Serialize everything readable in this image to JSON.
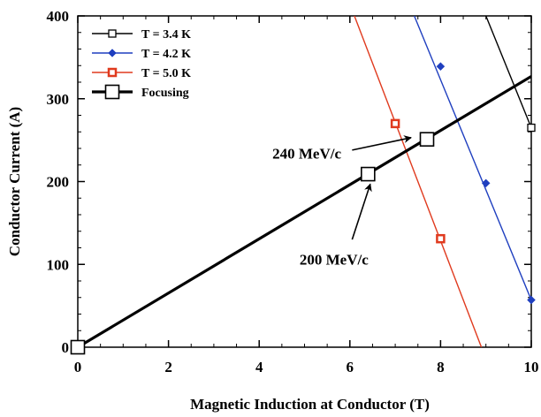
{
  "chart_data": {
    "type": "line",
    "xlabel": "Magnetic Induction at Conductor (T)",
    "ylabel": "Conductor Current (A)",
    "xlim": [
      0,
      10
    ],
    "ylim": [
      0,
      400
    ],
    "x_ticks": [
      0,
      2,
      4,
      6,
      8,
      10
    ],
    "y_ticks": [
      0,
      100,
      200,
      300,
      400
    ],
    "grid": false,
    "legend_position": "top-left",
    "series": [
      {
        "name": "T = 3.4 K",
        "color": "#000000",
        "marker": "hollow-square",
        "line": [
          [
            9.0,
            400
          ],
          [
            10.0,
            265
          ]
        ],
        "points": [
          [
            10.0,
            265
          ]
        ]
      },
      {
        "name": "T = 4.2 K",
        "color": "#1f3fbf",
        "marker": "diamond",
        "line": [
          [
            7.42,
            400
          ],
          [
            10.0,
            57
          ]
        ],
        "points": [
          [
            8.0,
            339
          ],
          [
            9.0,
            198
          ],
          [
            10.0,
            57
          ]
        ]
      },
      {
        "name": "T = 5.0 K",
        "color": "#e03a1e",
        "marker": "small-square",
        "line": [
          [
            6.1,
            400
          ],
          [
            8.9,
            0
          ]
        ],
        "points": [
          [
            7.0,
            270
          ],
          [
            8.0,
            131
          ]
        ]
      },
      {
        "name": "Focusing",
        "color": "#000000",
        "marker": "large-hollow-square",
        "thick": true,
        "line": [
          [
            0.0,
            0
          ],
          [
            10.0,
            327
          ]
        ],
        "points": [
          [
            0.0,
            0
          ],
          [
            6.4,
            209
          ],
          [
            7.7,
            251
          ]
        ]
      }
    ],
    "annotations": [
      {
        "text": "240 MeV/c",
        "text_at": [
          5.05,
          228
        ],
        "arrow_from": [
          6.05,
          238
        ],
        "arrow_to": [
          7.35,
          253
        ]
      },
      {
        "text": "200 MeV/c",
        "text_at": [
          5.65,
          100
        ],
        "arrow_from": [
          6.05,
          130
        ],
        "arrow_to": [
          6.45,
          197
        ]
      }
    ]
  }
}
